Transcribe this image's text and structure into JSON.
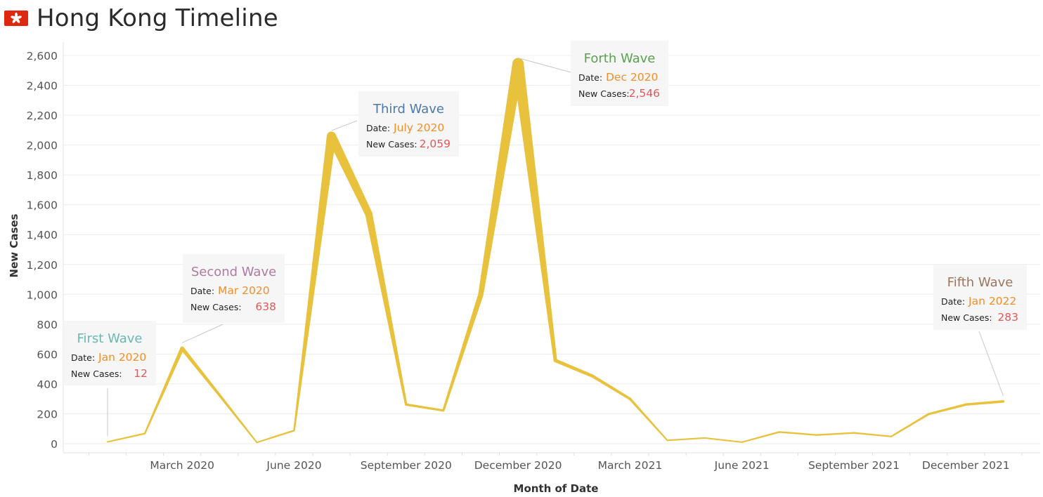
{
  "page": {
    "title": "Hong Kong Timeline",
    "flag_icon": "hong-kong-flag-icon"
  },
  "colors": {
    "line": "#E8C13D",
    "grid": "#ececec",
    "axis_text": "#555555",
    "date_value": "#F28E2B",
    "cases_value": "#E15759",
    "label_text": "#222222",
    "annotation_bg": "#f6f6f6",
    "leader": "#c8c8c8",
    "flag_red": "#DE2910"
  },
  "chart_data": {
    "type": "line",
    "xlabel": "Month of Date",
    "ylabel": "New Cases",
    "x_ticks": [
      "March 2020",
      "June 2020",
      "September 2020",
      "December 2020",
      "March 2021",
      "June 2021",
      "September 2021",
      "December 2021"
    ],
    "y_ticks": [
      "0",
      "200",
      "400",
      "600",
      "800",
      "1,000",
      "1,200",
      "1,400",
      "1,600",
      "1,800",
      "2,000",
      "2,200",
      "2,400",
      "2,600"
    ],
    "ylim": [
      -50,
      2700
    ],
    "grid": true,
    "x": [
      "2020-01",
      "2020-02",
      "2020-03",
      "2020-04",
      "2020-05",
      "2020-06",
      "2020-07",
      "2020-08",
      "2020-09",
      "2020-10",
      "2020-11",
      "2020-12",
      "2021-01",
      "2021-02",
      "2021-03",
      "2021-04",
      "2021-05",
      "2021-06",
      "2021-07",
      "2021-08",
      "2021-09",
      "2021-10",
      "2021-11",
      "2021-12",
      "2022-01"
    ],
    "values": [
      12,
      68,
      638,
      325,
      8,
      88,
      2059,
      1538,
      262,
      222,
      997,
      2546,
      557,
      452,
      300,
      22,
      38,
      10,
      78,
      58,
      72,
      48,
      198,
      262,
      283
    ],
    "annotations": [
      {
        "name": "first-wave",
        "title": "First Wave",
        "title_color": "#6BB7B2",
        "date_label": "Date:",
        "date": "Jan 2020",
        "cases_label": "New Cases:",
        "cases": "12",
        "point_index": 0
      },
      {
        "name": "second-wave",
        "title": "Second Wave",
        "title_color": "#B07AA1",
        "date_label": "Date:",
        "date": "Mar 2020",
        "cases_label": "New Cases:",
        "cases": "638",
        "point_index": 2
      },
      {
        "name": "third-wave",
        "title": "Third Wave",
        "title_color": "#4E79A7",
        "date_label": "Date:",
        "date": "July 2020",
        "cases_label": "New Cases:",
        "cases": "2,059",
        "point_index": 6
      },
      {
        "name": "forth-wave",
        "title": "Forth Wave",
        "title_color": "#59A14F",
        "date_label": "Date:",
        "date": "Dec 2020",
        "cases_label": "New Cases:",
        "cases": "2,546",
        "point_index": 11
      },
      {
        "name": "fifth-wave",
        "title": "Fifth Wave",
        "title_color": "#9C755F",
        "date_label": "Date:",
        "date": "Jan 2022",
        "cases_label": "New Cases:",
        "cases": "283",
        "point_index": 24
      }
    ]
  }
}
